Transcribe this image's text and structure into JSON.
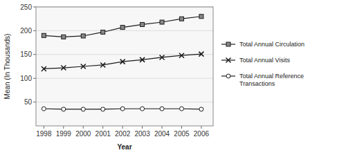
{
  "chart_data": {
    "type": "line",
    "xlabel": "Year",
    "ylabel": "Mean (In Thousands)",
    "x": [
      1998,
      1999,
      2000,
      2001,
      2002,
      2003,
      2004,
      2005,
      2006
    ],
    "series": [
      {
        "name": "Total Annual Circulation",
        "color": "#1a1a1a",
        "marker": "square",
        "values": [
          190,
          187,
          189,
          197,
          207,
          213,
          218,
          225,
          230
        ]
      },
      {
        "name": "Total Annual Visits",
        "color": "#1a1a1a",
        "marker": "x",
        "values": [
          120,
          122,
          125,
          128,
          135,
          139,
          144,
          148,
          151
        ]
      },
      {
        "name": "Total Annual Reference\nTransactions",
        "color": "#1a1a1a",
        "marker": "circle",
        "values": [
          36,
          35,
          35,
          35,
          36,
          36,
          36,
          36,
          35
        ]
      }
    ],
    "xlim": [
      1997.6,
      2006.6
    ],
    "xticks": [
      1998,
      1999,
      2000,
      2001,
      2002,
      2003,
      2004,
      2005,
      2006
    ],
    "ylim": [
      0,
      250
    ],
    "yticks": [
      50,
      100,
      150,
      200,
      250
    ],
    "grid": true,
    "legend": "right"
  }
}
